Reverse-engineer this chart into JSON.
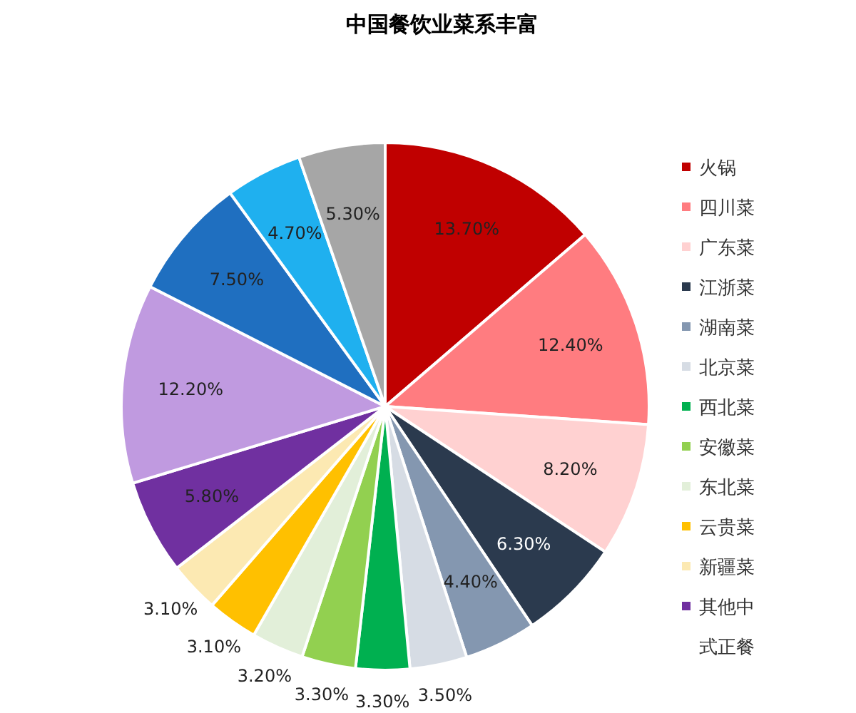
{
  "chart_data": {
    "type": "pie",
    "title": "中国餐饮业菜系丰富",
    "categories": [
      "火锅",
      "四川菜",
      "广东菜",
      "江浙菜",
      "湖南菜",
      "北京菜",
      "西北菜",
      "安徽菜",
      "东北菜",
      "云贵菜",
      "新疆菜",
      "其他中式正餐",
      null,
      null,
      null,
      null
    ],
    "values": [
      13.7,
      12.4,
      8.2,
      6.3,
      4.4,
      3.5,
      3.3,
      3.3,
      3.2,
      3.1,
      3.1,
      5.8,
      12.2,
      7.5,
      4.7,
      5.3
    ],
    "value_labels": [
      "13.70%",
      "12.40%",
      "8.20%",
      "6.30%",
      "4.40%",
      "3.50%",
      "3.30%",
      "3.30%",
      "3.20%",
      "3.10%",
      "3.10%",
      "5.80%",
      "12.20%",
      "7.50%",
      "4.70%",
      "5.30%"
    ],
    "colors": [
      "#c00000",
      "#ff7c80",
      "#ffd1d1",
      "#2b3a4e",
      "#8497b0",
      "#d6dce4",
      "#00b050",
      "#92d050",
      "#e2efd9",
      "#ffc000",
      "#fce9b2",
      "#7030a0",
      "#c09ae0",
      "#1f6fc0",
      "#1fb0ef",
      "#a6a6a6"
    ],
    "legend": "right"
  }
}
